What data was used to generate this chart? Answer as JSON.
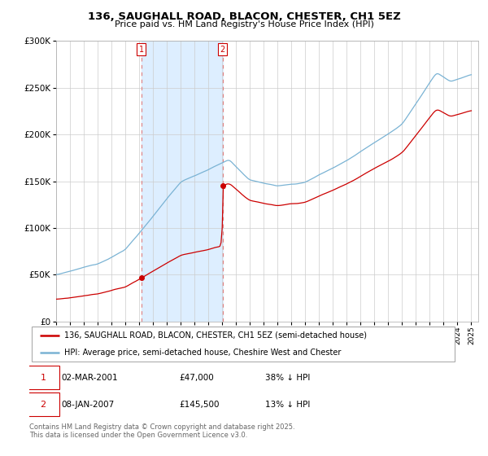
{
  "title": "136, SAUGHALL ROAD, BLACON, CHESTER, CH1 5EZ",
  "subtitle": "Price paid vs. HM Land Registry's House Price Index (HPI)",
  "ylim": [
    0,
    300000
  ],
  "yticks": [
    0,
    50000,
    100000,
    150000,
    200000,
    250000,
    300000
  ],
  "ytick_labels": [
    "£0",
    "£50K",
    "£100K",
    "£150K",
    "£200K",
    "£250K",
    "£300K"
  ],
  "sale1_date": 2001.17,
  "sale1_price": 47000,
  "sale1_label": "1",
  "sale2_date": 2007.02,
  "sale2_price": 145500,
  "sale2_label": "2",
  "hpi_color": "#7ab3d4",
  "price_color": "#cc0000",
  "shade_color": "#ddeeff",
  "background_color": "#ffffff",
  "legend_line1": "136, SAUGHALL ROAD, BLACON, CHESTER, CH1 5EZ (semi-detached house)",
  "legend_line2": "HPI: Average price, semi-detached house, Cheshire West and Chester",
  "note1_label": "1",
  "note1_date": "02-MAR-2001",
  "note1_price": "£47,000",
  "note1_hpi": "38% ↓ HPI",
  "note2_label": "2",
  "note2_date": "08-JAN-2007",
  "note2_price": "£145,500",
  "note2_hpi": "13% ↓ HPI",
  "footer": "Contains HM Land Registry data © Crown copyright and database right 2025.\nThis data is licensed under the Open Government Licence v3.0.",
  "xlim_left": 1995.0,
  "xlim_right": 2025.5
}
